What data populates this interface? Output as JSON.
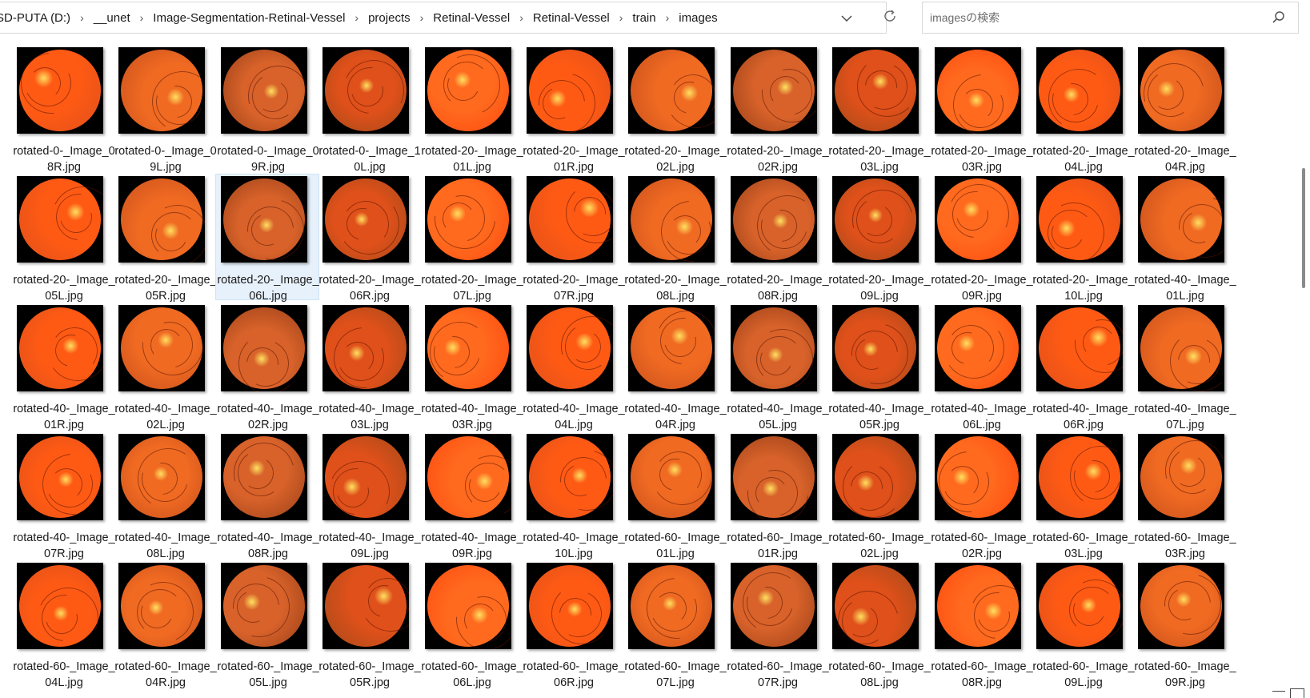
{
  "address_bar": {
    "breadcrumbs": [
      "SD-PUTA (D:)",
      "__unet",
      "Image-Segmentation-Retinal-Vessel",
      "projects",
      "Retinal-Vessel",
      "Retinal-Vessel",
      "train",
      "images"
    ],
    "separator_icon": "chevron-right-icon",
    "dropdown_icon": "chevron-down-icon",
    "refresh_icon": "refresh-icon"
  },
  "search": {
    "placeholder": "imagesの検索",
    "icon": "search-icon"
  },
  "files": [
    "rotated-0-_Image_08R.jpg",
    "rotated-0-_Image_09L.jpg",
    "rotated-0-_Image_09R.jpg",
    "rotated-0-_Image_10L.jpg",
    "rotated-20-_Image_01L.jpg",
    "rotated-20-_Image_01R.jpg",
    "rotated-20-_Image_02L.jpg",
    "rotated-20-_Image_02R.jpg",
    "rotated-20-_Image_03L.jpg",
    "rotated-20-_Image_03R.jpg",
    "rotated-20-_Image_04L.jpg",
    "rotated-20-_Image_04R.jpg",
    "rotated-20-_Image_05L.jpg",
    "rotated-20-_Image_05R.jpg",
    "rotated-20-_Image_06L.jpg",
    "rotated-20-_Image_06R.jpg",
    "rotated-20-_Image_07L.jpg",
    "rotated-20-_Image_07R.jpg",
    "rotated-20-_Image_08L.jpg",
    "rotated-20-_Image_08R.jpg",
    "rotated-20-_Image_09L.jpg",
    "rotated-20-_Image_09R.jpg",
    "rotated-20-_Image_10L.jpg",
    "rotated-40-_Image_01L.jpg",
    "rotated-40-_Image_01R.jpg",
    "rotated-40-_Image_02L.jpg",
    "rotated-40-_Image_02R.jpg",
    "rotated-40-_Image_03L.jpg",
    "rotated-40-_Image_03R.jpg",
    "rotated-40-_Image_04L.jpg",
    "rotated-40-_Image_04R.jpg",
    "rotated-40-_Image_05L.jpg",
    "rotated-40-_Image_05R.jpg",
    "rotated-40-_Image_06L.jpg",
    "rotated-40-_Image_06R.jpg",
    "rotated-40-_Image_07L.jpg",
    "rotated-40-_Image_07R.jpg",
    "rotated-40-_Image_08L.jpg",
    "rotated-40-_Image_08R.jpg",
    "rotated-40-_Image_09L.jpg",
    "rotated-40-_Image_09R.jpg",
    "rotated-40-_Image_10L.jpg",
    "rotated-60-_Image_01L.jpg",
    "rotated-60-_Image_01R.jpg",
    "rotated-60-_Image_02L.jpg",
    "rotated-60-_Image_02R.jpg",
    "rotated-60-_Image_03L.jpg",
    "rotated-60-_Image_03R.jpg",
    "rotated-60-_Image_04L.jpg",
    "rotated-60-_Image_04R.jpg",
    "rotated-60-_Image_05L.jpg",
    "rotated-60-_Image_05R.jpg",
    "rotated-60-_Image_06L.jpg",
    "rotated-60-_Image_06R.jpg",
    "rotated-60-_Image_07L.jpg",
    "rotated-60-_Image_07R.jpg",
    "rotated-60-_Image_08L.jpg",
    "rotated-60-_Image_08R.jpg",
    "rotated-60-_Image_09L.jpg",
    "rotated-60-_Image_09R.jpg"
  ],
  "selected_file": "rotated-20-_Image_06L.jpg",
  "colors": {
    "fundus_bright": "#ff5a14",
    "fundus_mid": "#e0501a",
    "fundus_dark": "#a34a1a",
    "disc": "#ffe060",
    "selection": "#e7f1fb"
  }
}
